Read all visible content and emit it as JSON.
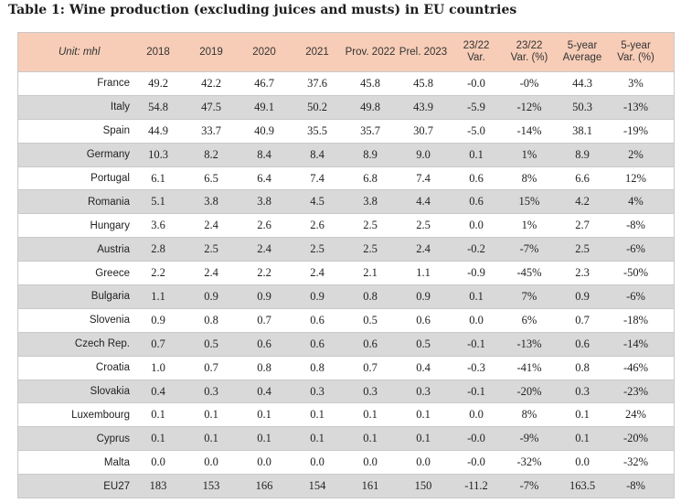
{
  "title": "Table 1: Wine production (excluding juices and musts) in EU countries",
  "table": {
    "unit_label": "Unit: mhl",
    "headers": [
      "2018",
      "2019",
      "2020",
      "2021",
      "Prov. 2022",
      "Prel. 2023",
      "23/22\nVar.",
      "23/22\nVar. (%)",
      "5-year\nAverage",
      "5-year\nVar. (%)"
    ],
    "rows": [
      {
        "country": "France",
        "values": [
          "49.2",
          "42.2",
          "46.7",
          "37.6",
          "45.8",
          "45.8",
          "-0.0",
          "-0%",
          "44.3",
          "3%"
        ]
      },
      {
        "country": "Italy",
        "values": [
          "54.8",
          "47.5",
          "49.1",
          "50.2",
          "49.8",
          "43.9",
          "-5.9",
          "-12%",
          "50.3",
          "-13%"
        ]
      },
      {
        "country": "Spain",
        "values": [
          "44.9",
          "33.7",
          "40.9",
          "35.5",
          "35.7",
          "30.7",
          "-5.0",
          "-14%",
          "38.1",
          "-19%"
        ]
      },
      {
        "country": "Germany",
        "values": [
          "10.3",
          "8.2",
          "8.4",
          "8.4",
          "8.9",
          "9.0",
          "0.1",
          "1%",
          "8.9",
          "2%"
        ]
      },
      {
        "country": "Portugal",
        "values": [
          "6.1",
          "6.5",
          "6.4",
          "7.4",
          "6.8",
          "7.4",
          "0.6",
          "8%",
          "6.6",
          "12%"
        ]
      },
      {
        "country": "Romania",
        "values": [
          "5.1",
          "3.8",
          "3.8",
          "4.5",
          "3.8",
          "4.4",
          "0.6",
          "15%",
          "4.2",
          "4%"
        ]
      },
      {
        "country": "Hungary",
        "values": [
          "3.6",
          "2.4",
          "2.6",
          "2.6",
          "2.5",
          "2.5",
          "0.0",
          "1%",
          "2.7",
          "-8%"
        ]
      },
      {
        "country": "Austria",
        "values": [
          "2.8",
          "2.5",
          "2.4",
          "2.5",
          "2.5",
          "2.4",
          "-0.2",
          "-7%",
          "2.5",
          "-6%"
        ]
      },
      {
        "country": "Greece",
        "values": [
          "2.2",
          "2.4",
          "2.2",
          "2.4",
          "2.1",
          "1.1",
          "-0.9",
          "-45%",
          "2.3",
          "-50%"
        ]
      },
      {
        "country": "Bulgaria",
        "values": [
          "1.1",
          "0.9",
          "0.9",
          "0.9",
          "0.8",
          "0.9",
          "0.1",
          "7%",
          "0.9",
          "-6%"
        ]
      },
      {
        "country": "Slovenia",
        "values": [
          "0.9",
          "0.8",
          "0.7",
          "0.6",
          "0.5",
          "0.6",
          "0.0",
          "6%",
          "0.7",
          "-18%"
        ]
      },
      {
        "country": "Czech Rep.",
        "values": [
          "0.7",
          "0.5",
          "0.6",
          "0.6",
          "0.6",
          "0.5",
          "-0.1",
          "-13%",
          "0.6",
          "-14%"
        ]
      },
      {
        "country": "Croatia",
        "values": [
          "1.0",
          "0.7",
          "0.8",
          "0.8",
          "0.7",
          "0.4",
          "-0.3",
          "-41%",
          "0.8",
          "-46%"
        ]
      },
      {
        "country": "Slovakia",
        "values": [
          "0.4",
          "0.3",
          "0.4",
          "0.3",
          "0.3",
          "0.3",
          "-0.1",
          "-20%",
          "0.3",
          "-23%"
        ]
      },
      {
        "country": "Luxembourg",
        "values": [
          "0.1",
          "0.1",
          "0.1",
          "0.1",
          "0.1",
          "0.1",
          "0.0",
          "8%",
          "0.1",
          "24%"
        ]
      },
      {
        "country": "Cyprus",
        "values": [
          "0.1",
          "0.1",
          "0.1",
          "0.1",
          "0.1",
          "0.1",
          "-0.0",
          "-9%",
          "0.1",
          "-20%"
        ]
      },
      {
        "country": "Malta",
        "values": [
          "0.0",
          "0.0",
          "0.0",
          "0.0",
          "0.0",
          "0.0",
          "-0.0",
          "-32%",
          "0.0",
          "-32%"
        ]
      },
      {
        "country": "EU27",
        "values": [
          "183",
          "153",
          "166",
          "154",
          "161",
          "150",
          "-11.2",
          "-7%",
          "163.5",
          "-8%"
        ]
      }
    ]
  },
  "colors": {
    "header_bg": "#f7cdb7",
    "row_alt_bg": "#d9d9d9",
    "row_bg": "#ffffff"
  }
}
